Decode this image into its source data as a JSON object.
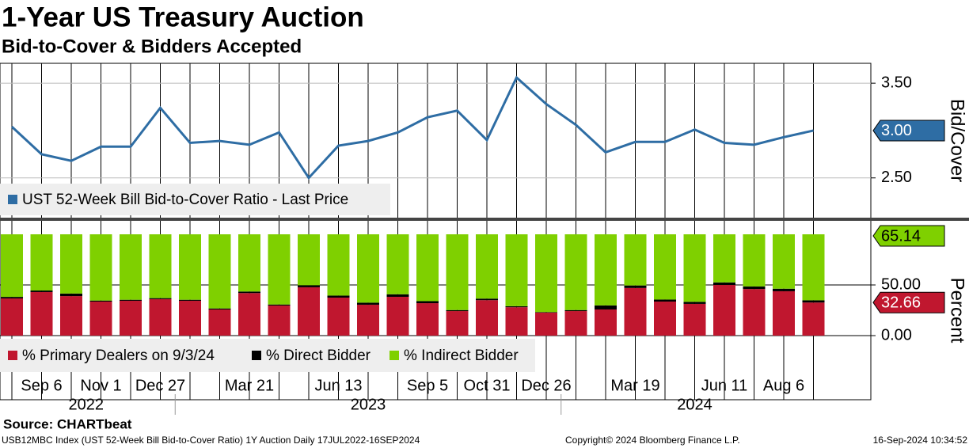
{
  "title": "1-Year US Treasury Auction",
  "subtitle": "Bid-to-Cover & Bidders Accepted",
  "source": "Source: CHARTbeat",
  "footer_left": "USB12MBC Index (UST 52-Week Bill Bid-to-Cover Ratio) 1Y Auction  Daily 17JUL2022-16SEP2024",
  "footer_center": "Copyright© 2024 Bloomberg Finance L.P.",
  "footer_right": "16-Sep-2024 10:34:52",
  "chart_data": [
    {
      "type": "line",
      "y_label": "Bid/Cover",
      "grid": true,
      "ylim": [
        2.08,
        3.71
      ],
      "yticks": [
        {
          "value": 2.5,
          "label": "2.50"
        },
        {
          "value": 3.5,
          "label": "3.50"
        }
      ],
      "series": [
        {
          "name": "UST 52-Week Bill Bid-to-Cover Ratio - Last Price",
          "color": "#2e6da4",
          "last_value_label": "3.00",
          "values": [
            3.04,
            2.75,
            2.68,
            2.83,
            2.83,
            3.24,
            2.87,
            2.89,
            2.85,
            2.98,
            2.5,
            2.84,
            2.89,
            2.98,
            3.14,
            3.21,
            2.9,
            3.56,
            3.28,
            3.06,
            2.77,
            2.88,
            2.88,
            3.01,
            2.87,
            2.85,
            2.93,
            3.0
          ]
        }
      ]
    },
    {
      "type": "stacked_bar",
      "y_label": "Percent",
      "grid": true,
      "ylim": [
        -63.3,
        113.3
      ],
      "yticks": [
        {
          "value": 0,
          "label": "0.00"
        },
        {
          "value": 50,
          "label": "50.00"
        }
      ],
      "categories": [
        null,
        "Sep 6",
        null,
        "Nov 1",
        null,
        "Dec 27",
        null,
        null,
        "Mar 21",
        null,
        null,
        "Jun 13",
        null,
        null,
        "Sep 5",
        null,
        "Oct 31",
        null,
        "Dec 26",
        null,
        null,
        "Mar 19",
        null,
        null,
        "Jun 11",
        null,
        "Aug 6",
        null
      ],
      "years": [
        "2022",
        "2023",
        "2024"
      ],
      "year_starts": [
        0,
        6,
        19
      ],
      "series": [
        {
          "name": "% Primary Dealers on 9/3/24",
          "color": "#c0172f",
          "last_value_label": "32.66",
          "values": [
            36.7,
            43,
            39,
            33.6,
            34.4,
            36,
            34.4,
            25.8,
            42,
            29.7,
            47.7,
            37.5,
            30.5,
            38.3,
            32,
            24.2,
            35,
            28,
            22.7,
            24.2,
            25.8,
            47,
            33.6,
            31.3,
            50,
            46,
            43.8,
            32.66
          ]
        },
        {
          "name": "% Direct Bidder",
          "color": "#000000",
          "values": [
            1.5,
            1.5,
            2.5,
            1,
            1,
            1,
            1,
            1,
            1.5,
            1,
            2,
            2,
            2,
            2.5,
            2,
            1,
            1.5,
            1,
            0.5,
            1,
            4,
            2.5,
            2,
            2,
            2.5,
            2.5,
            2.5,
            2.2
          ]
        },
        {
          "name": "% Indirect Bidder",
          "color": "#7fd000",
          "last_value_label": "65.14",
          "values": [
            61.8,
            55.5,
            58.5,
            65.4,
            64.6,
            63,
            64.6,
            73.2,
            56.5,
            69.3,
            50.3,
            60.5,
            67.5,
            59.2,
            66,
            74.8,
            63.5,
            71,
            76.8,
            74.8,
            70.2,
            50.5,
            64.4,
            66.7,
            47.5,
            51.5,
            53.7,
            65.14
          ]
        }
      ]
    }
  ]
}
